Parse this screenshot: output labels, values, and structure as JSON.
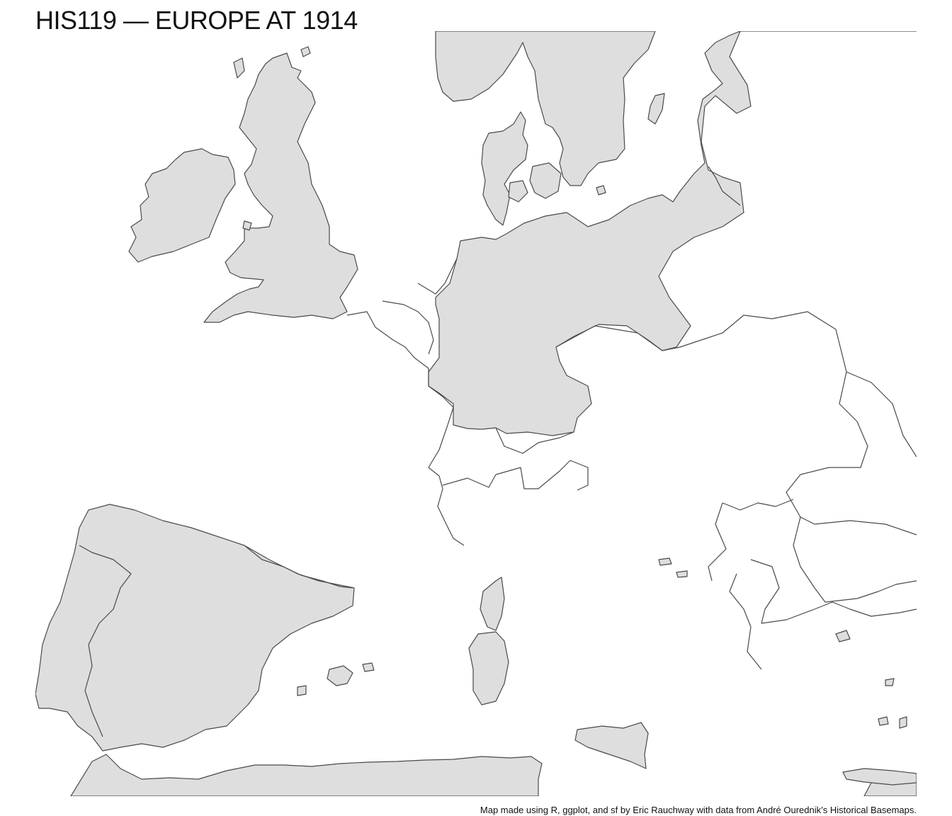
{
  "title": "HIS119 — EUROPE AT 1914",
  "caption": "Map made using R, ggplot, and sf by Eric Rauchway with data from André Ourednik’s Historical Basemaps.",
  "colors": {
    "land": "#dedede",
    "outline": "#4a4a4a",
    "sea": "#ffffff"
  }
}
